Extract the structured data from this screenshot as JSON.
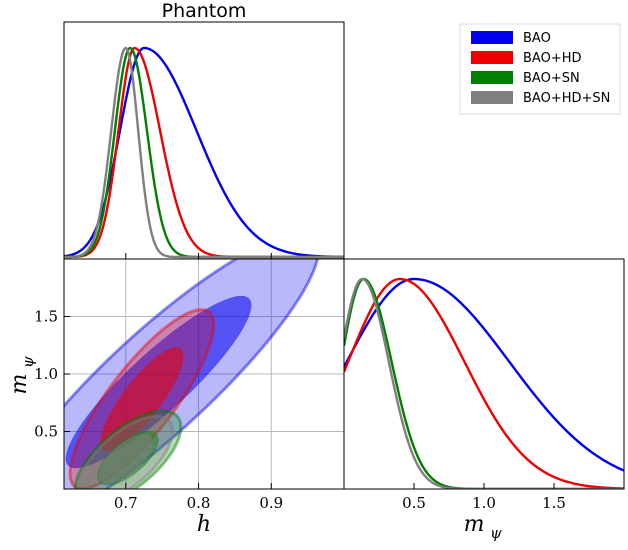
{
  "chart_data": {
    "type": "corner-plot",
    "title": "Phantom",
    "legend": {
      "placement": "top-right",
      "entries": [
        {
          "label": "BAO",
          "color": "#0000ee"
        },
        {
          "label": "BAO+HD",
          "color": "#ee0000"
        },
        {
          "label": "BAO+SN",
          "color": "#007f00"
        },
        {
          "label": "BAO+HD+SN",
          "color": "#7f7f7f"
        }
      ]
    },
    "parameters": {
      "h": {
        "label": "h",
        "range": [
          0.615,
          1.0
        ],
        "ticks": [
          0.7,
          0.8,
          0.9
        ],
        "tick_labels": [
          "0.7",
          "0.8",
          "0.9"
        ]
      },
      "m_psi": {
        "label_main": "m",
        "label_sub": "ψ",
        "range": [
          0.0,
          2.0
        ],
        "ticks": [
          0.5,
          1.0,
          1.5
        ],
        "tick_labels": [
          "0.5",
          "1.0",
          "1.5"
        ]
      }
    },
    "marginal_h": [
      {
        "name": "BAO",
        "peak": 0.725,
        "sigma_left": 0.033,
        "sigma_right": 0.072
      },
      {
        "name": "BAO+HD",
        "peak": 0.712,
        "sigma_left": 0.022,
        "sigma_right": 0.035
      },
      {
        "name": "BAO+SN",
        "peak": 0.706,
        "sigma_left": 0.021,
        "sigma_right": 0.023
      },
      {
        "name": "BAO+HD+SN",
        "peak": 0.7,
        "sigma_left": 0.02,
        "sigma_right": 0.017
      }
    ],
    "marginal_mpsi": [
      {
        "name": "BAO",
        "peak": 0.5,
        "sigma_left": 0.48,
        "sigma_right": 0.68
      },
      {
        "name": "BAO+HD",
        "peak": 0.4,
        "sigma_left": 0.37,
        "sigma_right": 0.46
      },
      {
        "name": "BAO+SN",
        "peak": 0.14,
        "sigma_left": 0.16,
        "sigma_right": 0.2
      },
      {
        "name": "BAO+HD+SN",
        "peak": 0.13,
        "sigma_left": 0.16,
        "sigma_right": 0.19
      }
    ],
    "contours_h_mpsi": [
      {
        "name": "BAO",
        "color": "#0000ee",
        "center": [
          0.745,
          0.93
        ],
        "semi_major": [
          0.215,
          1.25
        ],
        "semi_minor": 0.07,
        "levels": [
          "95%",
          "68%"
        ]
      },
      {
        "name": "BAO+HD",
        "color": "#ee0000",
        "center": [
          0.722,
          0.78
        ],
        "semi_major": [
          0.092,
          0.76
        ],
        "semi_minor": 0.045,
        "levels": [
          "95%",
          "68%"
        ]
      },
      {
        "name": "BAO+SN",
        "color": "#007f00",
        "center": [
          0.703,
          0.27
        ],
        "semi_major": [
          0.068,
          0.36
        ],
        "semi_minor": 0.04,
        "levels": [
          "95%",
          "68%"
        ]
      },
      {
        "name": "BAO+HD+SN",
        "color": "#7f7f7f",
        "center": [
          0.7,
          0.26
        ],
        "semi_major": [
          0.06,
          0.33
        ],
        "semi_minor": 0.036,
        "levels": [
          "95%",
          "68%"
        ]
      }
    ]
  }
}
